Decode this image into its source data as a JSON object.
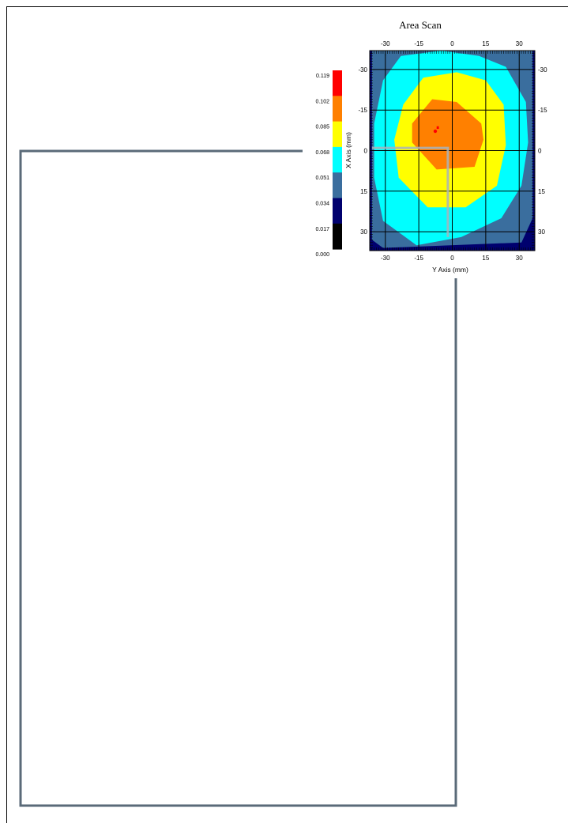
{
  "chart_data": {
    "type": "heatmap",
    "title": "Area Scan",
    "xlabel": "Y Axis (mm)",
    "ylabel": "X Axis (mm)",
    "xlim": [
      -37,
      37
    ],
    "ylim": [
      -37,
      37
    ],
    "x_ticks": [
      -30,
      -15,
      0,
      15,
      30
    ],
    "y_ticks": [
      -30,
      -15,
      0,
      15,
      30
    ],
    "grid": true,
    "legend_placement": "left",
    "legend": {
      "labels": [
        "0.119",
        "0.102",
        "0.085",
        "0.068",
        "0.051",
        "0.034",
        "0.017",
        "0.000"
      ],
      "colors": [
        "#ff0000",
        "#ff8000",
        "#ffff00",
        "#00ffff",
        "#3a6e9e",
        "#00006e",
        "#000000"
      ]
    },
    "contours": [
      {
        "level": "0.034",
        "color": "#00006e",
        "points": [
          [
            -37,
            -37
          ],
          [
            37,
            -37
          ],
          [
            37,
            37
          ],
          [
            -37,
            37
          ]
        ]
      },
      {
        "level": "0.051",
        "color": "#3a6e9e",
        "points": [
          [
            -36,
            -37
          ],
          [
            36,
            -37
          ],
          [
            36,
            25
          ],
          [
            31,
            34
          ],
          [
            -31,
            36
          ],
          [
            -36,
            33
          ]
        ]
      },
      {
        "level": "0.068",
        "color": "#00ffff",
        "points": [
          [
            -23,
            -35
          ],
          [
            -5,
            -37
          ],
          [
            12,
            -35
          ],
          [
            24,
            -31
          ],
          [
            33,
            -18
          ],
          [
            34,
            -3
          ],
          [
            31,
            13
          ],
          [
            22,
            25
          ],
          [
            4,
            32
          ],
          [
            -16,
            35
          ],
          [
            -31,
            26
          ],
          [
            -35,
            10
          ],
          [
            -35,
            -10
          ],
          [
            -31,
            -26
          ]
        ]
      },
      {
        "level": "0.085",
        "color": "#ffff00",
        "points": [
          [
            -13,
            -27
          ],
          [
            2,
            -29
          ],
          [
            15,
            -26
          ],
          [
            23,
            -17
          ],
          [
            24,
            -2
          ],
          [
            20,
            13
          ],
          [
            6,
            21
          ],
          [
            -11,
            21
          ],
          [
            -24,
            10
          ],
          [
            -26,
            -4
          ],
          [
            -22,
            -17
          ]
        ]
      },
      {
        "level": "0.102",
        "color": "#ff8000",
        "points": [
          [
            -9,
            -19
          ],
          [
            2,
            -18
          ],
          [
            13,
            -10
          ],
          [
            14,
            -4
          ],
          [
            10,
            6
          ],
          [
            -7,
            7
          ],
          [
            -18,
            -3
          ],
          [
            -18,
            -10
          ]
        ]
      },
      {
        "level": "0.119",
        "color": "#ff0000",
        "points": [
          [
            -7,
            -9
          ],
          [
            -7,
            -8
          ],
          [
            -6,
            -8
          ],
          [
            -6,
            -9
          ]
        ]
      }
    ],
    "probe_line": [
      [
        -36,
        -1
      ],
      [
        -2,
        -1
      ],
      [
        -2,
        32
      ]
    ]
  }
}
